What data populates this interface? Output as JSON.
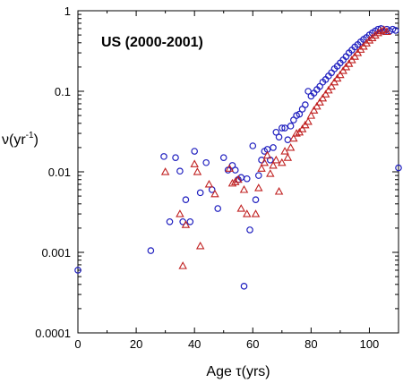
{
  "chart_data": {
    "type": "scatter",
    "title": "US (2000-2001)",
    "xlabel": "Age τ(yrs)",
    "ylabel_main": "ν(yr",
    "ylabel_sup": "-1",
    "ylabel_tail": ")",
    "xlim": [
      0,
      110
    ],
    "ylim": [
      0.0001,
      1
    ],
    "y_scale": "log",
    "grid": false,
    "x_ticks": [
      0,
      20,
      40,
      60,
      80,
      100
    ],
    "x_tick_labels": [
      "0",
      "20",
      "40",
      "60",
      "80",
      "100"
    ],
    "y_ticks": [
      0.0001,
      0.001,
      0.01,
      0.1,
      1
    ],
    "y_tick_labels": [
      "0.0001",
      "0.001",
      "0.01",
      "0.1",
      "1"
    ],
    "series": [
      {
        "marker": "circle",
        "color": "#1f1fbf",
        "points": [
          [
            0,
            0.0006
          ],
          [
            25,
            0.00105
          ],
          [
            29.5,
            0.0155
          ],
          [
            31.5,
            0.0024
          ],
          [
            33.5,
            0.015
          ],
          [
            35,
            0.0102
          ],
          [
            36,
            0.0024
          ],
          [
            37,
            0.0045
          ],
          [
            38.5,
            0.0024
          ],
          [
            40,
            0.018
          ],
          [
            42,
            0.0055
          ],
          [
            44,
            0.013
          ],
          [
            46,
            0.006
          ],
          [
            48,
            0.0035
          ],
          [
            50,
            0.015
          ],
          [
            51.5,
            0.0105
          ],
          [
            53,
            0.012
          ],
          [
            54,
            0.0105
          ],
          [
            55,
            0.008
          ],
          [
            56,
            0.0085
          ],
          [
            57,
            0.00038
          ],
          [
            58,
            0.0082
          ],
          [
            59,
            0.0019
          ],
          [
            60,
            0.021
          ],
          [
            61,
            0.0045
          ],
          [
            62,
            0.009
          ],
          [
            63,
            0.014
          ],
          [
            64,
            0.018
          ],
          [
            65,
            0.019
          ],
          [
            66,
            0.014
          ],
          [
            67,
            0.02
          ],
          [
            68,
            0.031
          ],
          [
            69,
            0.027
          ],
          [
            70,
            0.035
          ],
          [
            71,
            0.035
          ],
          [
            72,
            0.025
          ],
          [
            73,
            0.037
          ],
          [
            74,
            0.044
          ],
          [
            75,
            0.05
          ],
          [
            76,
            0.052
          ],
          [
            77,
            0.06
          ],
          [
            78,
            0.068
          ],
          [
            79,
            0.1
          ],
          [
            80,
            0.087
          ],
          [
            81,
            0.095
          ],
          [
            82,
            0.105
          ],
          [
            83,
            0.115
          ],
          [
            84,
            0.13
          ],
          [
            85,
            0.14
          ],
          [
            86,
            0.155
          ],
          [
            87,
            0.17
          ],
          [
            88,
            0.19
          ],
          [
            89,
            0.205
          ],
          [
            90,
            0.225
          ],
          [
            91,
            0.245
          ],
          [
            92,
            0.27
          ],
          [
            93,
            0.3
          ],
          [
            94,
            0.325
          ],
          [
            95,
            0.355
          ],
          [
            96,
            0.38
          ],
          [
            97,
            0.41
          ],
          [
            98,
            0.44
          ],
          [
            99,
            0.465
          ],
          [
            100,
            0.5
          ],
          [
            101,
            0.53
          ],
          [
            102,
            0.56
          ],
          [
            103,
            0.59
          ],
          [
            104,
            0.6
          ],
          [
            105,
            0.55
          ],
          [
            106,
            0.59
          ],
          [
            107,
            0.56
          ],
          [
            108,
            0.59
          ],
          [
            109,
            0.57
          ],
          [
            110,
            0.0112
          ]
        ]
      },
      {
        "marker": "triangle",
        "color": "#c02020",
        "points": [
          [
            30,
            0.01
          ],
          [
            35,
            0.003
          ],
          [
            36,
            0.00068
          ],
          [
            37,
            0.0022
          ],
          [
            40,
            0.0125
          ],
          [
            41,
            0.01
          ],
          [
            42,
            0.0012
          ],
          [
            45,
            0.007
          ],
          [
            47,
            0.0053
          ],
          [
            52,
            0.011
          ],
          [
            53,
            0.0072
          ],
          [
            54,
            0.0075
          ],
          [
            55,
            0.008
          ],
          [
            56,
            0.0035
          ],
          [
            57,
            0.006
          ],
          [
            58,
            0.003
          ],
          [
            61,
            0.003
          ],
          [
            62,
            0.0063
          ],
          [
            63,
            0.011
          ],
          [
            64,
            0.013
          ],
          [
            65,
            0.016
          ],
          [
            66,
            0.0095
          ],
          [
            67,
            0.012
          ],
          [
            68,
            0.014
          ],
          [
            69,
            0.0057
          ],
          [
            70,
            0.013
          ],
          [
            71,
            0.018
          ],
          [
            72,
            0.015
          ],
          [
            73,
            0.02
          ],
          [
            74,
            0.026
          ],
          [
            75,
            0.03
          ],
          [
            76,
            0.031
          ],
          [
            77,
            0.034
          ],
          [
            78,
            0.038
          ],
          [
            79,
            0.042
          ],
          [
            80,
            0.05
          ],
          [
            81,
            0.058
          ],
          [
            82,
            0.065
          ],
          [
            83,
            0.073
          ],
          [
            84,
            0.082
          ],
          [
            85,
            0.092
          ],
          [
            86,
            0.103
          ],
          [
            87,
            0.115
          ],
          [
            88,
            0.13
          ],
          [
            89,
            0.145
          ],
          [
            90,
            0.16
          ],
          [
            91,
            0.18
          ],
          [
            92,
            0.2
          ],
          [
            93,
            0.22
          ],
          [
            94,
            0.245
          ],
          [
            95,
            0.27
          ],
          [
            96,
            0.3
          ],
          [
            97,
            0.33
          ],
          [
            98,
            0.36
          ],
          [
            99,
            0.395
          ],
          [
            100,
            0.43
          ],
          [
            101,
            0.46
          ],
          [
            102,
            0.495
          ],
          [
            103,
            0.53
          ],
          [
            104,
            0.56
          ],
          [
            105,
            0.58
          ],
          [
            106,
            0.55
          ]
        ]
      }
    ]
  }
}
